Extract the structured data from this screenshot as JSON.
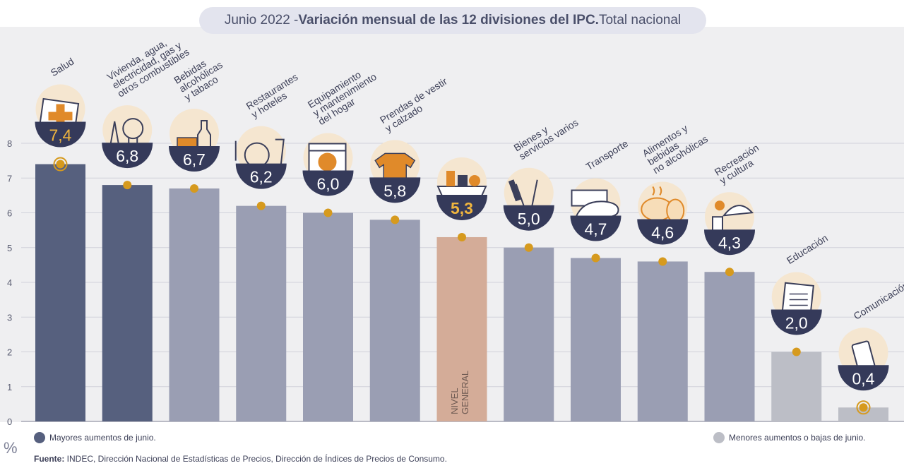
{
  "title": {
    "prefix": "Junio 2022 - ",
    "main": "Variación mensual de las 12 divisiones del IPC.",
    "suffix": " Total nacional"
  },
  "y_unit": "%",
  "legend": {
    "high": "Mayores aumentos de junio.",
    "low": "Menores aumentos o bajas de junio."
  },
  "source": {
    "label": "Fuente:",
    "text": " INDEC, Dirección Nacional de Estadísticas de Precios, Dirección de Índices de Precios de Consumo."
  },
  "general_label": [
    "NIVEL",
    "GENERAL"
  ],
  "colors": {
    "high": "#56607e",
    "mid": "#9a9eb3",
    "low": "#bcbec6",
    "general": "#d4ac98",
    "accent": "#d69a1e",
    "bubble": "#353a5a",
    "general_value": "#f0b53e"
  },
  "chart_data": {
    "type": "bar",
    "ylim": [
      0,
      8
    ],
    "yticks": [
      0,
      1,
      2,
      3,
      4,
      5,
      6,
      7,
      8
    ],
    "grid": true,
    "categories": [
      {
        "label": [
          "Salud"
        ],
        "value": 7.4,
        "display": "7,4",
        "group": "high",
        "icon": "first-aid-icon"
      },
      {
        "label": [
          "Vivienda, agua,",
          "electricidad, gas y",
          "otros combustibles"
        ],
        "value": 6.8,
        "display": "6,8",
        "group": "high",
        "icon": "lightbulb-icon"
      },
      {
        "label": [
          "Bebidas",
          "alcohólicas",
          "y tabaco"
        ],
        "value": 6.7,
        "display": "6,7",
        "group": "mid",
        "icon": "bottle-icon"
      },
      {
        "label": [
          "Restaurantes",
          "y hoteles"
        ],
        "value": 6.2,
        "display": "6,2",
        "group": "mid",
        "icon": "plate-icon"
      },
      {
        "label": [
          "Equipamiento",
          "y mantenimiento",
          "del hogar"
        ],
        "value": 6.0,
        "display": "6,0",
        "group": "mid",
        "icon": "washing-machine-icon"
      },
      {
        "label": [
          "Prendas de vestir",
          "y calzado"
        ],
        "value": 5.8,
        "display": "5,8",
        "group": "mid",
        "icon": "shirt-icon"
      },
      {
        "label": [],
        "value": 5.3,
        "display": "5,3",
        "group": "general",
        "icon": "basket-icon"
      },
      {
        "label": [
          "Bienes y",
          "servicios varios"
        ],
        "value": 5.0,
        "display": "5,0",
        "group": "mid",
        "icon": "comb-scissors-icon"
      },
      {
        "label": [
          "Transporte"
        ],
        "value": 4.7,
        "display": "4,7",
        "group": "mid",
        "icon": "transit-card-icon"
      },
      {
        "label": [
          "Alimentos y",
          "bebidas",
          "no alcohólicas"
        ],
        "value": 4.6,
        "display": "4,6",
        "group": "mid",
        "icon": "chicken-icon"
      },
      {
        "label": [
          "Recreación",
          "y cultura"
        ],
        "value": 4.3,
        "display": "4,3",
        "group": "mid",
        "icon": "beach-umbrella-icon"
      },
      {
        "label": [
          "Educación"
        ],
        "value": 2.0,
        "display": "2,0",
        "group": "low",
        "icon": "notebook-icon"
      },
      {
        "label": [
          "Comunicación"
        ],
        "value": 0.4,
        "display": "0,4",
        "group": "low",
        "icon": "phone-icon"
      }
    ]
  }
}
